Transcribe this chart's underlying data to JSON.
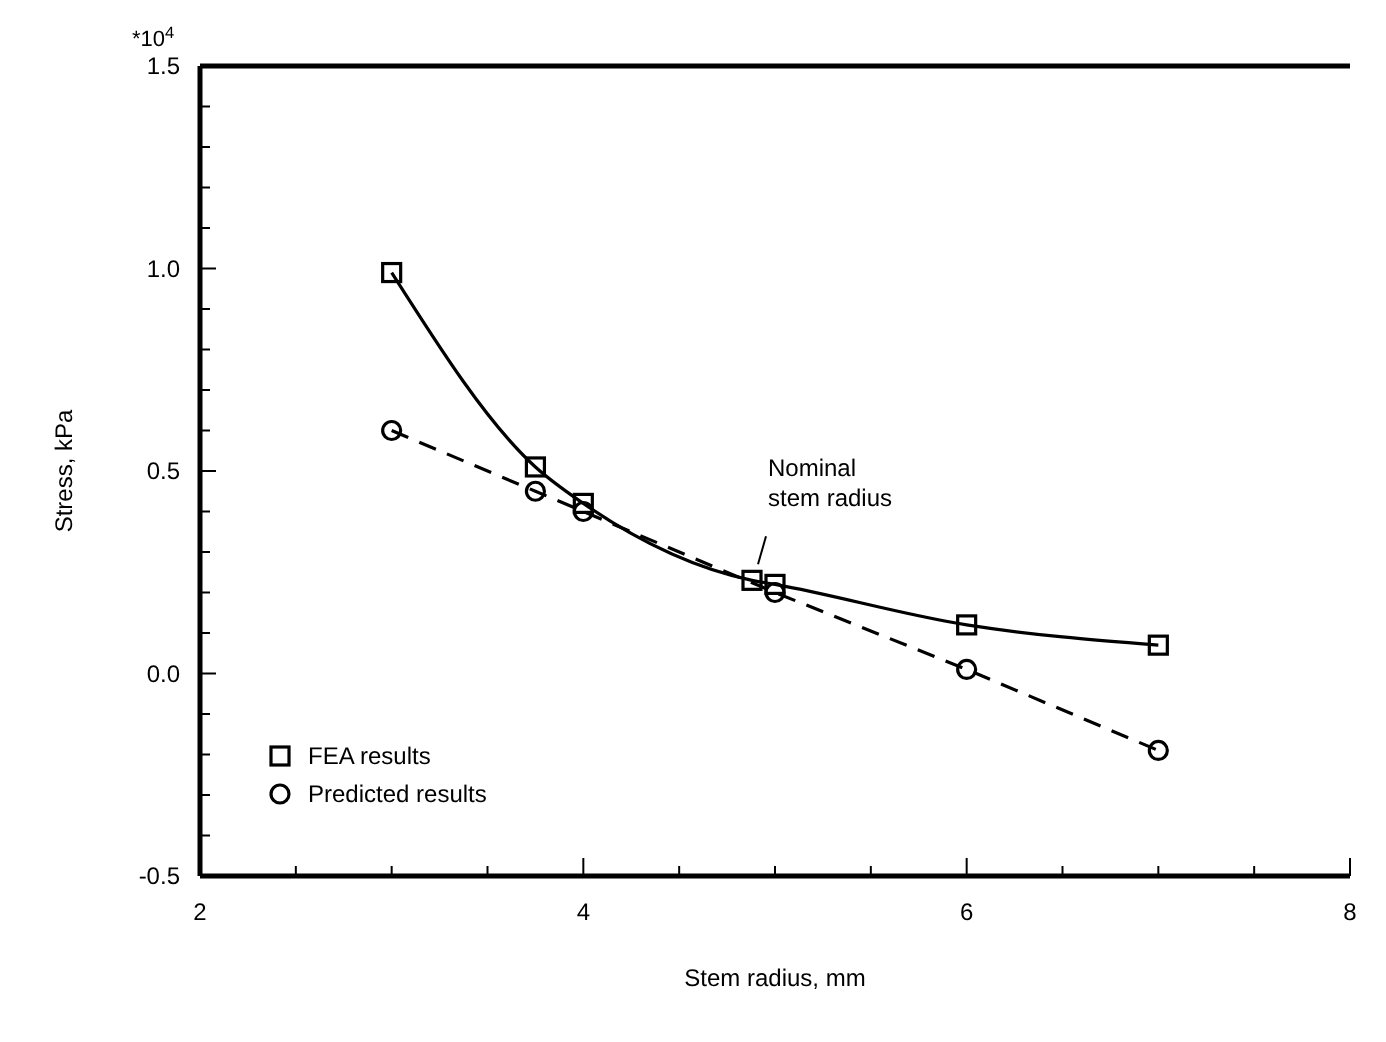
{
  "chart_data": {
    "type": "line",
    "xlabel": "Stem radius, mm",
    "ylabel": "Stress, kPa",
    "xlim": [
      2,
      8
    ],
    "xticks": [
      2,
      {
        "value": 2.5,
        "label": null
      },
      {
        "value": 3,
        "label": null
      },
      {
        "value": 3.5,
        "label": null
      },
      4,
      {
        "value": 4.5,
        "label": null
      },
      {
        "value": 5,
        "label": null
      },
      {
        "value": 5.5,
        "label": null
      },
      6,
      {
        "value": 6.5,
        "label": null
      },
      {
        "value": 7,
        "label": null
      },
      {
        "value": 7.5,
        "label": null
      },
      8
    ],
    "ylim": [
      -0.5,
      1.5
    ],
    "yticks": [
      {
        "value": -0.5,
        "label": "-0.5"
      },
      {
        "value": -0.4,
        "label": null
      },
      {
        "value": -0.3,
        "label": null
      },
      {
        "value": -0.2,
        "label": null
      },
      {
        "value": -0.1,
        "label": null
      },
      {
        "value": 0,
        "label": "0.0"
      },
      {
        "value": 0.1,
        "label": null
      },
      {
        "value": 0.2,
        "label": null
      },
      {
        "value": 0.3,
        "label": null
      },
      {
        "value": 0.4,
        "label": null
      },
      {
        "value": 0.5,
        "label": "0.5"
      },
      {
        "value": 0.6,
        "label": null
      },
      {
        "value": 0.7,
        "label": null
      },
      {
        "value": 0.8,
        "label": null
      },
      {
        "value": 0.9,
        "label": null
      },
      {
        "value": 1.0,
        "label": "1.0"
      },
      {
        "value": 1.1,
        "label": null
      },
      {
        "value": 1.2,
        "label": null
      },
      {
        "value": 1.3,
        "label": null
      },
      {
        "value": 1.4,
        "label": null
      },
      {
        "value": 1.5,
        "label": "1.5"
      }
    ],
    "grid": false,
    "legend": "bottom left",
    "series": [
      {
        "name": "FEA results",
        "color": "#000000",
        "marker": "square",
        "line_style": "solid",
        "x": [
          3.0,
          3.75,
          4.0,
          4.88,
          5.0,
          6.0,
          7.0
        ],
        "values": [
          0.99,
          0.51,
          0.42,
          0.23,
          0.22,
          0.12,
          0.07
        ]
      },
      {
        "name": "Predicted results",
        "color": "#000000",
        "marker": "circle",
        "line_style": "dashed",
        "x": [
          3.0,
          3.75,
          4.0,
          5.0,
          6.0,
          7.0
        ],
        "values": [
          0.6,
          0.45,
          0.4,
          0.2,
          0.01,
          -0.19
        ]
      }
    ],
    "annotations": [
      "*10$^{4}$",
      {
        "text": "Nominal\nstem radius",
        "x": 4.88,
        "y": 0.23
      }
    ]
  }
}
